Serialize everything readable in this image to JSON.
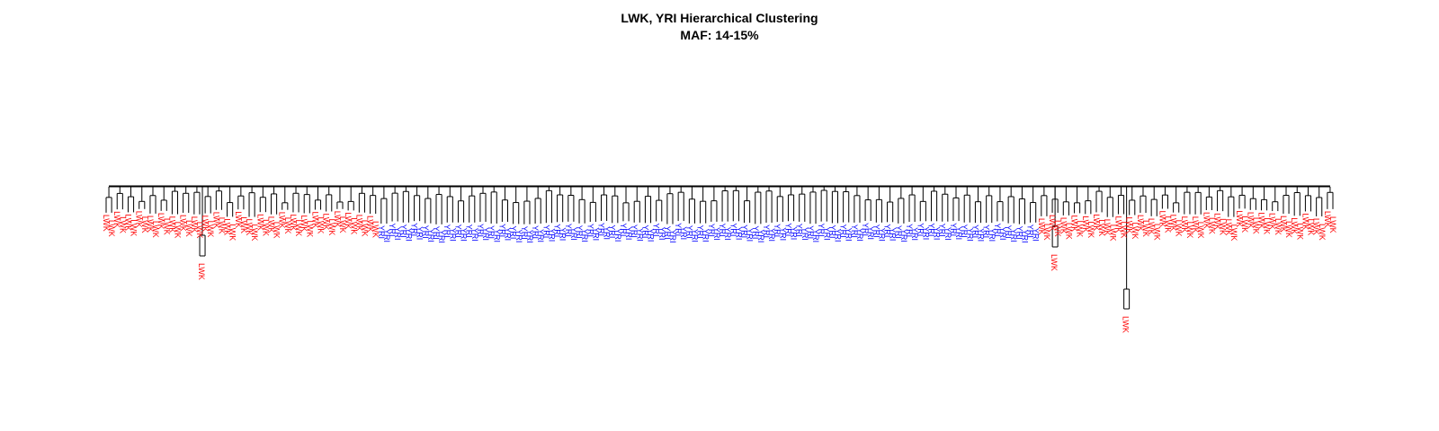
{
  "figure": {
    "title_line1": "LWK, YRI Hierarchical Clustering",
    "title_line2": "MAF: 14-15%"
  },
  "legend": [],
  "groups": [
    {
      "label": "LWK",
      "color": "#ff0000"
    },
    {
      "label": "YRI",
      "color": "#0000ff"
    }
  ],
  "dendrogram": {
    "leaves": [
      "LWK",
      "LWK",
      "LWK",
      "LWK",
      "LWK",
      "LWK",
      "LWK",
      "LWK",
      "LWK",
      "LWK",
      "LWK",
      "LWK",
      "LWK",
      "LWK",
      "LWK",
      "LWK",
      "LWK",
      "LWK",
      "LWK",
      "LWK",
      "LWK",
      "LWK",
      "LWK",
      "LWK",
      "LWK",
      "LWK",
      "LWK",
      "LWK",
      "LWK",
      "LWK",
      "LWK",
      "LWK",
      "LWK",
      "LWK",
      "LWK",
      "LWK",
      "LWK",
      "LWK",
      "LWK",
      "LWK",
      "LWK",
      "LWK",
      "LWK",
      "LWK",
      "LWK",
      "LWK",
      "LWK",
      "LWK",
      "LWK",
      "LWK",
      "YRI",
      "YRI",
      "YRI",
      "YRI",
      "YRI",
      "YRI",
      "YRI",
      "YRI",
      "YRI",
      "YRI",
      "YRI",
      "YRI",
      "YRI",
      "YRI",
      "YRI",
      "YRI",
      "YRI",
      "YRI",
      "YRI",
      "YRI",
      "YRI",
      "YRI",
      "YRI",
      "YRI",
      "YRI",
      "YRI",
      "YRI",
      "YRI",
      "YRI",
      "YRI",
      "YRI",
      "YRI",
      "YRI",
      "YRI",
      "YRI",
      "YRI",
      "YRI",
      "YRI",
      "YRI",
      "YRI",
      "YRI",
      "YRI",
      "YRI",
      "YRI",
      "YRI",
      "YRI",
      "YRI",
      "YRI",
      "YRI",
      "YRI",
      "YRI",
      "YRI",
      "YRI",
      "YRI",
      "YRI",
      "YRI",
      "YRI",
      "YRI",
      "YRI",
      "YRI",
      "YRI",
      "YRI",
      "YRI",
      "YRI",
      "YRI",
      "YRI",
      "YRI",
      "YRI",
      "YRI",
      "YRI",
      "YRI",
      "YRI",
      "YRI",
      "YRI",
      "YRI",
      "YRI",
      "YRI",
      "YRI",
      "YRI",
      "YRI",
      "YRI",
      "YRI",
      "YRI",
      "YRI",
      "YRI",
      "YRI",
      "YRI",
      "YRI",
      "YRI",
      "YRI",
      "YRI",
      "YRI",
      "YRI",
      "YRI",
      "YRI",
      "YRI",
      "YRI",
      "YRI",
      "YRI",
      "YRI",
      "YRI",
      "YRI",
      "YRI",
      "YRI",
      "YRI",
      "YRI",
      "YRI",
      "YRI",
      "YRI",
      "YRI",
      "YRI",
      "YRI",
      "YRI",
      "YRI",
      "YRI",
      "YRI",
      "YRI",
      "YRI",
      "YRI",
      "YRI",
      "LWK",
      "LWK",
      "LWK",
      "LWK",
      "LWK",
      "LWK",
      "LWK",
      "LWK",
      "LWK",
      "LWK",
      "LWK",
      "LWK",
      "LWK",
      "LWK",
      "LWK",
      "LWK",
      "LWK",
      "LWK",
      "LWK",
      "LWK",
      "LWK",
      "LWK",
      "LWK",
      "LWK",
      "LWK",
      "LWK",
      "LWK",
      "LWK",
      "LWK",
      "LWK",
      "LWK",
      "LWK",
      "LWK",
      "LWK",
      "LWK",
      "LWK",
      "LWK",
      "LWK",
      "LWK",
      "LWK",
      "LWK",
      "LWK",
      "LWK",
      "LWK",
      "LWK",
      "LWK",
      "LWK",
      "LWK",
      "LWK",
      "LWK",
      "LWK",
      "LWK",
      "LWK",
      "LWK"
    ],
    "outlier_leaves": [
      {
        "label": "LWK",
        "after_leaf_index": 17
      },
      {
        "label": "LWK",
        "after_leaf_index": 172
      },
      {
        "label": "LWK",
        "after_leaf_index": 185
      }
    ]
  }
}
